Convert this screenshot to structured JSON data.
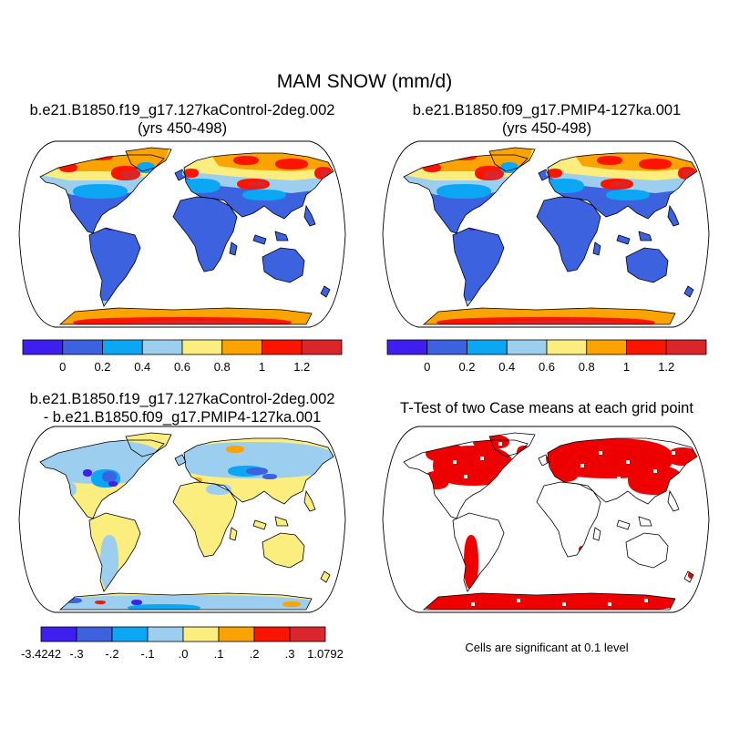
{
  "title": "MAM SNOW (mm/d)",
  "panels": [
    {
      "id": "p1",
      "kind": "field",
      "title_line1": "b.e21.B1850.f19_g17.127kaControl-2deg.002",
      "title_line2": "(yrs 450-498)"
    },
    {
      "id": "p2",
      "kind": "field",
      "title_line1": "b.e21.B1850.f09_g17.PMIP4-127ka.001",
      "title_line2": "(yrs 450-498)"
    },
    {
      "id": "p3",
      "kind": "difference",
      "title_line1": "b.e21.B1850.f19_g17.127kaControl-2deg.002",
      "title_line2": "- b.e21.B1850.f09_g17.PMIP4-127ka.001"
    },
    {
      "id": "p4",
      "kind": "significance",
      "title_line1": "T-Test of two Case means at each grid point",
      "note": "Cells are significant at 0.1 level"
    }
  ],
  "colorbar_field": {
    "colors": [
      "#3f1ef0",
      "#3d62e0",
      "#0ba6f4",
      "#9ccfef",
      "#fbee7e",
      "#fba300",
      "#fb1500",
      "#d8262a"
    ],
    "labels": [
      "0",
      "0.2",
      "0.4",
      "0.6",
      "0.8",
      "1",
      "1.2"
    ]
  },
  "colorbar_diff": {
    "colors": [
      "#3f1ef0",
      "#3d62e0",
      "#0ba6f4",
      "#9ccfef",
      "#fbee7e",
      "#fba300",
      "#fb1500",
      "#d8262a"
    ],
    "labels": [
      "-3.4242",
      "-.3",
      "-.2",
      "-.1",
      ".0",
      ".1",
      ".2",
      ".3",
      "1.0792"
    ]
  },
  "significance_color": "#ee0000",
  "ocean_color": "#ffffff",
  "coast_color": "#000000"
}
